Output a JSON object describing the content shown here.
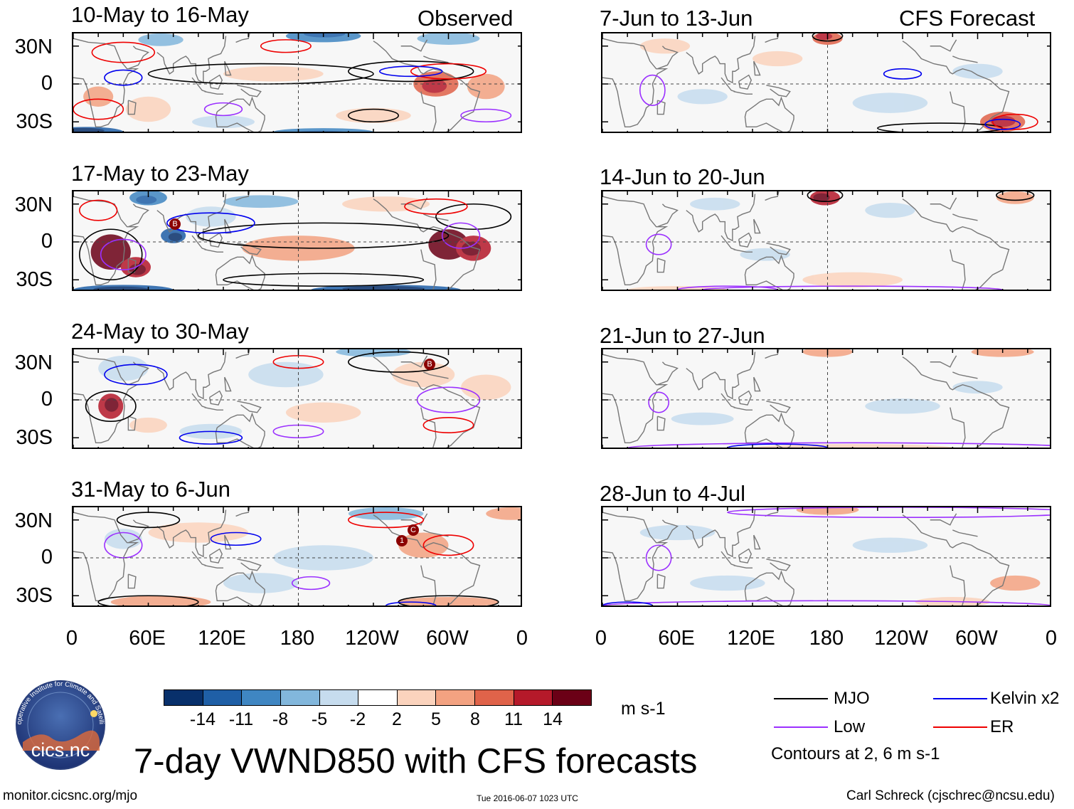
{
  "header": {
    "observed_label": "Observed",
    "forecast_label": "CFS Forecast"
  },
  "observed_panels": [
    {
      "title": "10-May to 16-May"
    },
    {
      "title": "17-May to 23-May"
    },
    {
      "title": "24-May to 30-May"
    },
    {
      "title": "31-May to 6-Jun"
    }
  ],
  "forecast_panels": [
    {
      "title": "7-Jun to 13-Jun"
    },
    {
      "title": "14-Jun to 20-Jun"
    },
    {
      "title": "21-Jun to 27-Jun"
    },
    {
      "title": "28-Jun to 4-Jul"
    }
  ],
  "axes": {
    "lat_labels": [
      "30N",
      "0",
      "30S"
    ],
    "lon_labels": [
      "0",
      "60E",
      "120E",
      "180",
      "120W",
      "60W",
      "0"
    ]
  },
  "colorbar": {
    "unit": "m s-1",
    "tick_labels": [
      "-14",
      "-11",
      "-8",
      "-5",
      "-2",
      "2",
      "5",
      "8",
      "11",
      "14"
    ],
    "colors": [
      "#08306b",
      "#1f5fa6",
      "#3f86c2",
      "#82b7dc",
      "#c6dcee",
      "#ffffff",
      "#fbd3bd",
      "#f3a281",
      "#e0634a",
      "#b5192a",
      "#6b0016"
    ]
  },
  "legend": {
    "items": [
      {
        "label": "MJO",
        "color": "#000000"
      },
      {
        "label": "Kelvin x2",
        "color": "#0000ee"
      },
      {
        "label": "Low",
        "color": "#9b30ff"
      },
      {
        "label": "ER",
        "color": "#ee0000"
      }
    ],
    "note": "Contours at 2, 6 m s-1"
  },
  "main_title": "7-day VWND850 with CFS forecasts",
  "logo_text": "cics.nc",
  "logo_ring_text": "Cooperative Institute for Climate and Satellites",
  "footer": {
    "left": "monitor.cicsnc.org/mjo",
    "center": "Tue 2016-06-07 1023 UTC",
    "right": "Carl Schreck (cjschrec@ncsu.edu)"
  },
  "storm_markers": [
    "B",
    "B",
    "1",
    "C"
  ]
}
